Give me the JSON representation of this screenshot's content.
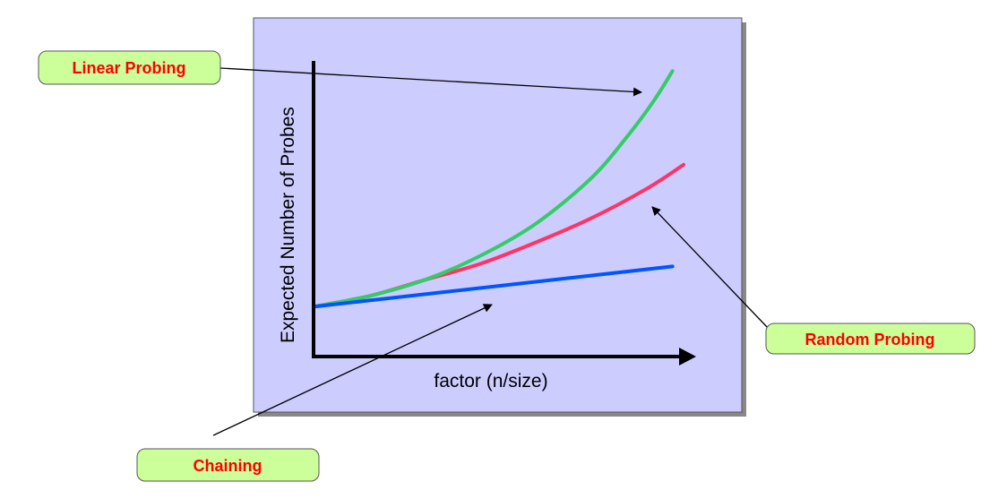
{
  "colors": {
    "panel_fill": "#ccccff",
    "panel_border": "#555555",
    "panel_shadow": "#888888",
    "callout_fill": "#ccff99",
    "callout_text": "#ff0000",
    "axis": "#000000"
  },
  "chart_data": {
    "type": "line",
    "title": "",
    "xlabel": "factor (n/size)",
    "ylabel": "Expected Number of Probes",
    "grid": false,
    "legend": "none",
    "xlim": [
      0,
      1
    ],
    "ylim": [
      0,
      1
    ],
    "series": [
      {
        "name": "Linear Probing",
        "color": "#33cc66",
        "points": [
          [
            0,
            0.18
          ],
          [
            0.15,
            0.22
          ],
          [
            0.3,
            0.28
          ],
          [
            0.45,
            0.37
          ],
          [
            0.6,
            0.49
          ],
          [
            0.75,
            0.66
          ],
          [
            0.85,
            0.82
          ],
          [
            0.92,
            0.95
          ],
          [
            0.97,
            1.06
          ]
        ]
      },
      {
        "name": "Random Probing",
        "color": "#ff3366",
        "points": [
          [
            0,
            0.18
          ],
          [
            0.15,
            0.22
          ],
          [
            0.3,
            0.28
          ],
          [
            0.45,
            0.34
          ],
          [
            0.6,
            0.42
          ],
          [
            0.75,
            0.51
          ],
          [
            0.9,
            0.62
          ],
          [
            1.0,
            0.71
          ]
        ]
      },
      {
        "name": "Chaining",
        "color": "#0055ff",
        "points": [
          [
            0,
            0.18
          ],
          [
            0.97,
            0.33
          ]
        ]
      }
    ]
  },
  "callouts": {
    "linear": "Linear Probing",
    "random": "Random Probing",
    "chaining": "Chaining"
  }
}
